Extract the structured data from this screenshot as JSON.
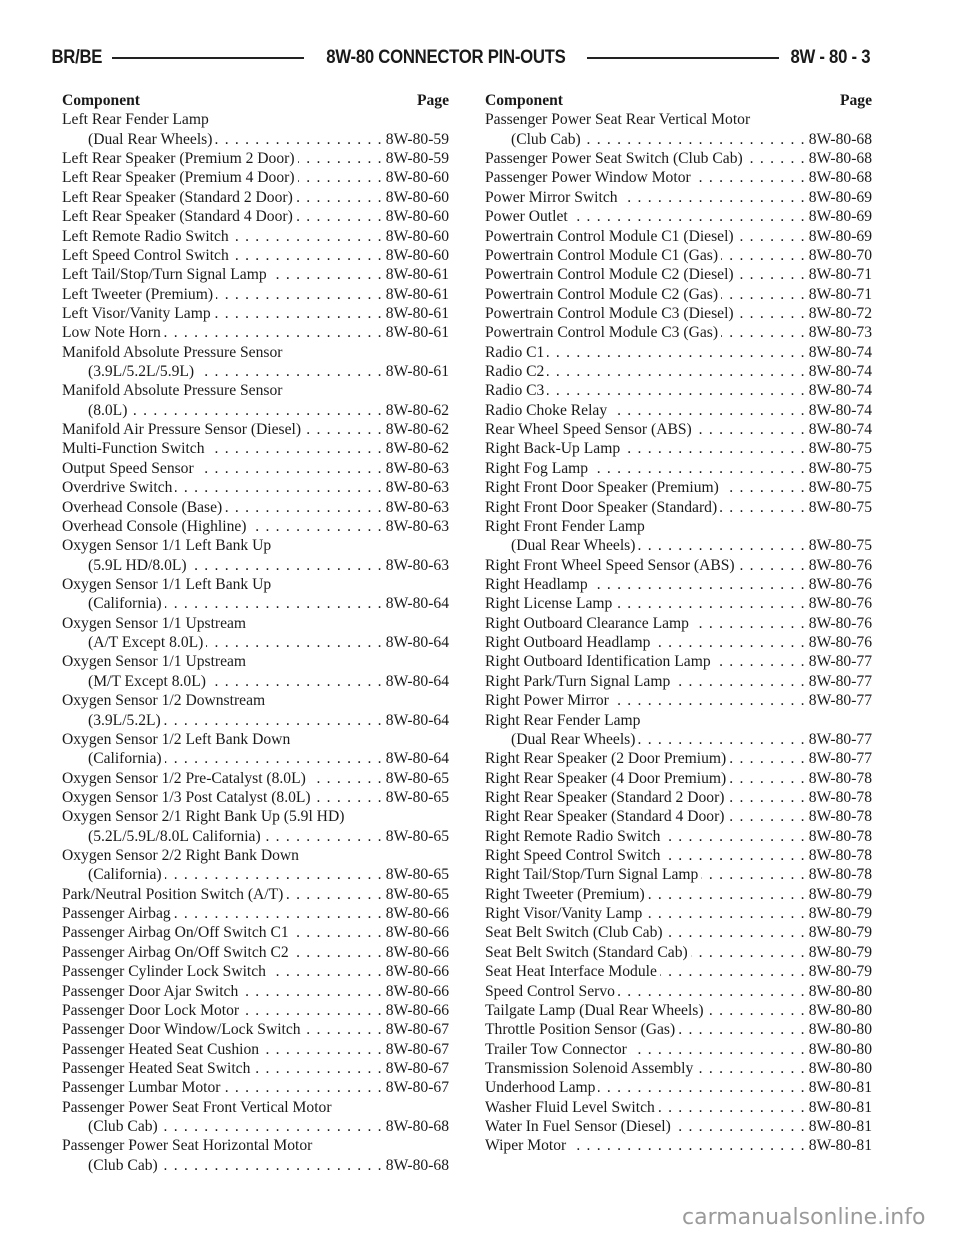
{
  "header": {
    "left": "BR/BE",
    "title": "8W-80 CONNECTOR PIN-OUTS",
    "page": "8W - 80 - 3"
  },
  "columns": [
    {
      "head_component": "Component",
      "head_page": "Page",
      "entries": [
        {
          "name": "Left Rear Fender Lamp",
          "cont": "(Dual Rear Wheels)",
          "page": "8W-80-59"
        },
        {
          "name": "Left Rear Speaker (Premium 2 Door)",
          "page": "8W-80-59"
        },
        {
          "name": "Left Rear Speaker (Premium 4 Door)",
          "page": "8W-80-60"
        },
        {
          "name": "Left Rear Speaker (Standard 2 Door)",
          "page": "8W-80-60"
        },
        {
          "name": "Left Rear Speaker (Standard 4 Door)",
          "page": "8W-80-60"
        },
        {
          "name": "Left Remote Radio Switch",
          "page": "8W-80-60"
        },
        {
          "name": "Left Speed Control Switch",
          "page": "8W-80-60"
        },
        {
          "name": "Left Tail/Stop/Turn Signal Lamp",
          "page": "8W-80-61"
        },
        {
          "name": "Left Tweeter (Premium)",
          "page": "8W-80-61"
        },
        {
          "name": "Left Visor/Vanity Lamp",
          "page": "8W-80-61"
        },
        {
          "name": "Low Note Horn",
          "page": "8W-80-61"
        },
        {
          "name": "Manifold Absolute Pressure Sensor",
          "cont": "(3.9L/5.2L/5.9L)",
          "page": "8W-80-61"
        },
        {
          "name": "Manifold Absolute Pressure Sensor",
          "cont": "(8.0L)",
          "page": "8W-80-62"
        },
        {
          "name": "Manifold Air Pressure Sensor (Diesel)",
          "page": "8W-80-62"
        },
        {
          "name": "Multi-Function Switch",
          "page": "8W-80-62"
        },
        {
          "name": "Output Speed Sensor",
          "page": "8W-80-63"
        },
        {
          "name": "Overdrive Switch",
          "page": "8W-80-63"
        },
        {
          "name": "Overhead Console (Base)",
          "page": "8W-80-63"
        },
        {
          "name": "Overhead Console (Highline)",
          "page": "8W-80-63"
        },
        {
          "name": "Oxygen Sensor 1/1 Left Bank Up",
          "cont": "(5.9L HD/8.0L)",
          "page": "8W-80-63"
        },
        {
          "name": "Oxygen Sensor 1/1 Left Bank Up",
          "cont": "(California)",
          "page": "8W-80-64"
        },
        {
          "name": "Oxygen Sensor 1/1 Upstream",
          "cont": "(A/T Except 8.0L)",
          "page": "8W-80-64"
        },
        {
          "name": "Oxygen Sensor 1/1 Upstream",
          "cont": "(M/T Except 8.0L)",
          "page": "8W-80-64"
        },
        {
          "name": "Oxygen Sensor 1/2 Downstream",
          "cont": "(3.9L/5.2L)",
          "page": "8W-80-64"
        },
        {
          "name": "Oxygen Sensor 1/2 Left Bank Down",
          "cont": "(California)",
          "page": "8W-80-64"
        },
        {
          "name": "Oxygen Sensor 1/2 Pre-Catalyst (8.0L)",
          "page": "8W-80-65"
        },
        {
          "name": "Oxygen Sensor 1/3 Post Catalyst (8.0L)",
          "page": "8W-80-65"
        },
        {
          "name": "Oxygen Sensor 2/1 Right Bank Up (5.9l HD)",
          "cont": "(5.2L/5.9L/8.0L California)",
          "page": "8W-80-65"
        },
        {
          "name": "Oxygen Sensor 2/2 Right Bank Down",
          "cont": "(California)",
          "page": "8W-80-65"
        },
        {
          "name": "Park/Neutral Position Switch (A/T)",
          "page": "8W-80-65"
        },
        {
          "name": "Passenger Airbag",
          "page": "8W-80-66"
        },
        {
          "name": "Passenger Airbag On/Off Switch C1",
          "page": "8W-80-66"
        },
        {
          "name": "Passenger Airbag On/Off Switch C2",
          "page": "8W-80-66"
        },
        {
          "name": "Passenger Cylinder Lock Switch",
          "page": "8W-80-66"
        },
        {
          "name": "Passenger Door Ajar Switch",
          "page": "8W-80-66"
        },
        {
          "name": "Passenger Door Lock Motor",
          "page": "8W-80-66"
        },
        {
          "name": "Passenger Door Window/Lock Switch",
          "page": "8W-80-67"
        },
        {
          "name": "Passenger Heated Seat Cushion",
          "page": "8W-80-67"
        },
        {
          "name": "Passenger Heated Seat Switch",
          "page": "8W-80-67"
        },
        {
          "name": "Passenger Lumbar Motor",
          "page": "8W-80-67"
        },
        {
          "name": "Passenger Power Seat Front Vertical Motor",
          "cont": "(Club Cab)",
          "page": "8W-80-68"
        },
        {
          "name": "Passenger Power Seat Horizontal Motor",
          "cont": "(Club Cab)",
          "page": "8W-80-68"
        }
      ]
    },
    {
      "head_component": "Component",
      "head_page": "Page",
      "entries": [
        {
          "name": "Passenger Power Seat Rear Vertical Motor",
          "cont": "(Club Cab)",
          "page": "8W-80-68"
        },
        {
          "name": "Passenger Power Seat Switch (Club Cab)",
          "page": "8W-80-68"
        },
        {
          "name": "Passenger Power Window Motor",
          "page": "8W-80-68"
        },
        {
          "name": "Power Mirror Switch",
          "page": "8W-80-69"
        },
        {
          "name": "Power Outlet",
          "page": "8W-80-69"
        },
        {
          "name": "Powertrain Control Module C1 (Diesel)",
          "page": "8W-80-69"
        },
        {
          "name": "Powertrain Control Module C1 (Gas)",
          "page": "8W-80-70"
        },
        {
          "name": "Powertrain Control Module C2 (Diesel)",
          "page": "8W-80-71"
        },
        {
          "name": "Powertrain Control Module C2 (Gas)",
          "page": "8W-80-71"
        },
        {
          "name": "Powertrain Control Module C3 (Diesel)",
          "page": "8W-80-72"
        },
        {
          "name": "Powertrain Control Module C3 (Gas)",
          "page": "8W-80-73"
        },
        {
          "name": "Radio C1",
          "page": "8W-80-74"
        },
        {
          "name": "Radio C2",
          "page": "8W-80-74"
        },
        {
          "name": "Radio C3",
          "page": "8W-80-74"
        },
        {
          "name": "Radio Choke Relay",
          "page": "8W-80-74"
        },
        {
          "name": "Rear Wheel Speed Sensor (ABS)",
          "page": "8W-80-74"
        },
        {
          "name": "Right Back-Up Lamp",
          "page": "8W-80-75"
        },
        {
          "name": "Right Fog Lamp",
          "page": "8W-80-75"
        },
        {
          "name": "Right Front Door Speaker (Premium)",
          "page": "8W-80-75"
        },
        {
          "name": "Right Front Door Speaker (Standard)",
          "page": "8W-80-75"
        },
        {
          "name": "Right Front Fender Lamp",
          "cont": "(Dual Rear Wheels)",
          "page": "8W-80-75"
        },
        {
          "name": "Right Front Wheel Speed Sensor (ABS)",
          "page": "8W-80-76"
        },
        {
          "name": "Right Headlamp",
          "page": "8W-80-76"
        },
        {
          "name": "Right License Lamp",
          "page": "8W-80-76"
        },
        {
          "name": "Right Outboard Clearance Lamp",
          "page": "8W-80-76"
        },
        {
          "name": "Right Outboard Headlamp",
          "page": "8W-80-76"
        },
        {
          "name": "Right Outboard Identification Lamp",
          "page": "8W-80-77"
        },
        {
          "name": "Right Park/Turn Signal Lamp",
          "page": "8W-80-77"
        },
        {
          "name": "Right Power Mirror",
          "page": "8W-80-77"
        },
        {
          "name": "Right Rear Fender Lamp",
          "cont": "(Dual Rear Wheels)",
          "page": "8W-80-77"
        },
        {
          "name": "Right Rear Speaker (2 Door Premium)",
          "page": "8W-80-77"
        },
        {
          "name": "Right Rear Speaker (4 Door Premium)",
          "page": "8W-80-78"
        },
        {
          "name": "Right Rear Speaker (Standard 2 Door)",
          "page": "8W-80-78"
        },
        {
          "name": "Right Rear Speaker (Standard 4 Door)",
          "page": "8W-80-78"
        },
        {
          "name": "Right Remote Radio Switch",
          "page": "8W-80-78"
        },
        {
          "name": "Right Speed Control Switch",
          "page": "8W-80-78"
        },
        {
          "name": "Right Tail/Stop/Turn Signal Lamp",
          "page": "8W-80-78"
        },
        {
          "name": "Right Tweeter (Premium)",
          "page": "8W-80-79"
        },
        {
          "name": "Right Visor/Vanity Lamp",
          "page": "8W-80-79"
        },
        {
          "name": "Seat Belt Switch (Club Cab)",
          "page": "8W-80-79"
        },
        {
          "name": "Seat Belt Switch (Standard Cab)",
          "page": "8W-80-79"
        },
        {
          "name": "Seat Heat Interface Module",
          "page": "8W-80-79"
        },
        {
          "name": "Speed Control Servo",
          "page": "8W-80-80"
        },
        {
          "name": "Tailgate Lamp (Dual Rear Wheels)",
          "page": "8W-80-80"
        },
        {
          "name": "Throttle Position Sensor (Gas)",
          "page": "8W-80-80"
        },
        {
          "name": "Trailer Tow Connector",
          "page": "8W-80-80"
        },
        {
          "name": "Transmission Solenoid Assembly",
          "page": "8W-80-80"
        },
        {
          "name": "Underhood Lamp",
          "page": "8W-80-81"
        },
        {
          "name": "Washer Fluid Level Switch",
          "page": "8W-80-81"
        },
        {
          "name": "Water In Fuel Sensor (Diesel)",
          "page": "8W-80-81"
        },
        {
          "name": "Wiper Motor",
          "page": "8W-80-81"
        }
      ]
    }
  ],
  "watermark": "carmanualsonline.info"
}
